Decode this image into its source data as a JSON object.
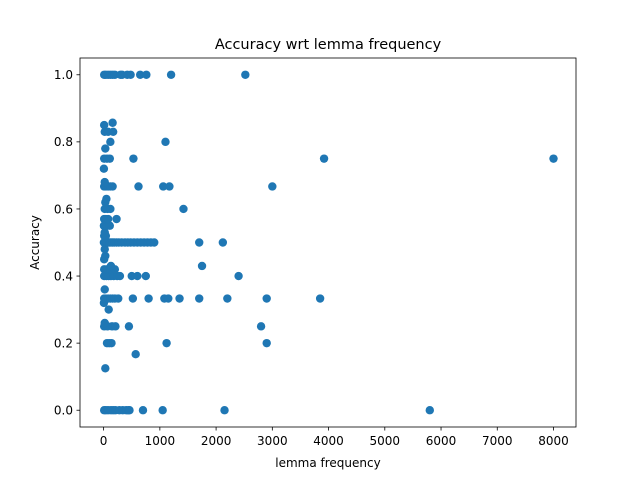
{
  "chart_data": {
    "type": "scatter",
    "title": "Accuracy wrt lemma frequency",
    "xlabel": "lemma frequency",
    "ylabel": "Accuracy",
    "xlim": [
      -420,
      8400
    ],
    "ylim": [
      -0.05,
      1.05
    ],
    "xticks": [
      0,
      1000,
      2000,
      3000,
      4000,
      5000,
      6000,
      7000,
      8000
    ],
    "yticks": [
      0.0,
      0.2,
      0.4,
      0.6,
      0.8,
      1.0
    ],
    "xtick_labels": [
      "0",
      "1000",
      "2000",
      "3000",
      "4000",
      "5000",
      "6000",
      "7000",
      "8000"
    ],
    "ytick_labels": [
      "0.0",
      "0.2",
      "0.4",
      "0.6",
      "0.8",
      "1.0"
    ],
    "grid": false,
    "marker_color": "#1f77b4",
    "points": [
      {
        "x": 10,
        "y": 0.0
      },
      {
        "x": 40,
        "y": 0.0
      },
      {
        "x": 80,
        "y": 0.0
      },
      {
        "x": 130,
        "y": 0.0
      },
      {
        "x": 170,
        "y": 0.0
      },
      {
        "x": 210,
        "y": 0.0
      },
      {
        "x": 280,
        "y": 0.0
      },
      {
        "x": 340,
        "y": 0.0
      },
      {
        "x": 400,
        "y": 0.0
      },
      {
        "x": 440,
        "y": 0.0
      },
      {
        "x": 460,
        "y": 0.0
      },
      {
        "x": 700,
        "y": 0.0
      },
      {
        "x": 1050,
        "y": 0.0
      },
      {
        "x": 2150,
        "y": 0.0
      },
      {
        "x": 5800,
        "y": 0.0
      },
      {
        "x": 30,
        "y": 0.125
      },
      {
        "x": 570,
        "y": 0.167
      },
      {
        "x": 60,
        "y": 0.2
      },
      {
        "x": 100,
        "y": 0.2
      },
      {
        "x": 140,
        "y": 0.2
      },
      {
        "x": 1120,
        "y": 0.2
      },
      {
        "x": 2900,
        "y": 0.2
      },
      {
        "x": 10,
        "y": 0.25
      },
      {
        "x": 70,
        "y": 0.25
      },
      {
        "x": 150,
        "y": 0.25
      },
      {
        "x": 210,
        "y": 0.25
      },
      {
        "x": 450,
        "y": 0.25
      },
      {
        "x": 2800,
        "y": 0.25
      },
      {
        "x": 20,
        "y": 0.26
      },
      {
        "x": 90,
        "y": 0.3
      },
      {
        "x": 5,
        "y": 0.32
      },
      {
        "x": 10,
        "y": 0.333
      },
      {
        "x": 40,
        "y": 0.333
      },
      {
        "x": 80,
        "y": 0.333
      },
      {
        "x": 120,
        "y": 0.333
      },
      {
        "x": 160,
        "y": 0.333
      },
      {
        "x": 200,
        "y": 0.333
      },
      {
        "x": 260,
        "y": 0.333
      },
      {
        "x": 520,
        "y": 0.333
      },
      {
        "x": 800,
        "y": 0.333
      },
      {
        "x": 1080,
        "y": 0.333
      },
      {
        "x": 1150,
        "y": 0.333
      },
      {
        "x": 1350,
        "y": 0.333
      },
      {
        "x": 1700,
        "y": 0.333
      },
      {
        "x": 2200,
        "y": 0.333
      },
      {
        "x": 2900,
        "y": 0.333
      },
      {
        "x": 3850,
        "y": 0.333
      },
      {
        "x": 20,
        "y": 0.36
      },
      {
        "x": 10,
        "y": 0.4
      },
      {
        "x": 50,
        "y": 0.4
      },
      {
        "x": 90,
        "y": 0.4
      },
      {
        "x": 130,
        "y": 0.4
      },
      {
        "x": 180,
        "y": 0.4
      },
      {
        "x": 240,
        "y": 0.4
      },
      {
        "x": 290,
        "y": 0.4
      },
      {
        "x": 500,
        "y": 0.4
      },
      {
        "x": 600,
        "y": 0.4
      },
      {
        "x": 750,
        "y": 0.4
      },
      {
        "x": 2400,
        "y": 0.4
      },
      {
        "x": 10,
        "y": 0.42
      },
      {
        "x": 60,
        "y": 0.42
      },
      {
        "x": 120,
        "y": 0.42
      },
      {
        "x": 200,
        "y": 0.42
      },
      {
        "x": 130,
        "y": 0.43
      },
      {
        "x": 1750,
        "y": 0.43
      },
      {
        "x": 10,
        "y": 0.45
      },
      {
        "x": 30,
        "y": 0.46
      },
      {
        "x": 20,
        "y": 0.48
      },
      {
        "x": 5,
        "y": 0.5
      },
      {
        "x": 20,
        "y": 0.5
      },
      {
        "x": 40,
        "y": 0.5
      },
      {
        "x": 60,
        "y": 0.5
      },
      {
        "x": 80,
        "y": 0.5
      },
      {
        "x": 100,
        "y": 0.5
      },
      {
        "x": 130,
        "y": 0.5
      },
      {
        "x": 160,
        "y": 0.5
      },
      {
        "x": 190,
        "y": 0.5
      },
      {
        "x": 230,
        "y": 0.5
      },
      {
        "x": 270,
        "y": 0.5
      },
      {
        "x": 320,
        "y": 0.5
      },
      {
        "x": 380,
        "y": 0.5
      },
      {
        "x": 430,
        "y": 0.5
      },
      {
        "x": 480,
        "y": 0.5
      },
      {
        "x": 540,
        "y": 0.5
      },
      {
        "x": 600,
        "y": 0.5
      },
      {
        "x": 660,
        "y": 0.5
      },
      {
        "x": 720,
        "y": 0.5
      },
      {
        "x": 780,
        "y": 0.5
      },
      {
        "x": 840,
        "y": 0.5
      },
      {
        "x": 900,
        "y": 0.5
      },
      {
        "x": 1700,
        "y": 0.5
      },
      {
        "x": 2120,
        "y": 0.5
      },
      {
        "x": 10,
        "y": 0.52
      },
      {
        "x": 40,
        "y": 0.52
      },
      {
        "x": 20,
        "y": 0.53
      },
      {
        "x": 5,
        "y": 0.55
      },
      {
        "x": 60,
        "y": 0.55
      },
      {
        "x": 110,
        "y": 0.55
      },
      {
        "x": 10,
        "y": 0.57
      },
      {
        "x": 40,
        "y": 0.57
      },
      {
        "x": 80,
        "y": 0.57
      },
      {
        "x": 230,
        "y": 0.57
      },
      {
        "x": 20,
        "y": 0.6
      },
      {
        "x": 70,
        "y": 0.6
      },
      {
        "x": 120,
        "y": 0.6
      },
      {
        "x": 1420,
        "y": 0.6
      },
      {
        "x": 30,
        "y": 0.62
      },
      {
        "x": 50,
        "y": 0.63
      },
      {
        "x": 10,
        "y": 0.667
      },
      {
        "x": 40,
        "y": 0.667
      },
      {
        "x": 80,
        "y": 0.667
      },
      {
        "x": 120,
        "y": 0.667
      },
      {
        "x": 160,
        "y": 0.667
      },
      {
        "x": 620,
        "y": 0.667
      },
      {
        "x": 1060,
        "y": 0.667
      },
      {
        "x": 1170,
        "y": 0.667
      },
      {
        "x": 3000,
        "y": 0.667
      },
      {
        "x": 20,
        "y": 0.68
      },
      {
        "x": 5,
        "y": 0.72
      },
      {
        "x": 10,
        "y": 0.75
      },
      {
        "x": 60,
        "y": 0.75
      },
      {
        "x": 110,
        "y": 0.75
      },
      {
        "x": 530,
        "y": 0.75
      },
      {
        "x": 3920,
        "y": 0.75
      },
      {
        "x": 8000,
        "y": 0.75
      },
      {
        "x": 30,
        "y": 0.78
      },
      {
        "x": 120,
        "y": 0.8
      },
      {
        "x": 1100,
        "y": 0.8
      },
      {
        "x": 20,
        "y": 0.83
      },
      {
        "x": 80,
        "y": 0.83
      },
      {
        "x": 170,
        "y": 0.83
      },
      {
        "x": 10,
        "y": 0.85
      },
      {
        "x": 160,
        "y": 0.857
      },
      {
        "x": 10,
        "y": 1.0
      },
      {
        "x": 40,
        "y": 1.0
      },
      {
        "x": 80,
        "y": 1.0
      },
      {
        "x": 120,
        "y": 1.0
      },
      {
        "x": 160,
        "y": 1.0
      },
      {
        "x": 200,
        "y": 1.0
      },
      {
        "x": 300,
        "y": 1.0
      },
      {
        "x": 330,
        "y": 1.0
      },
      {
        "x": 420,
        "y": 1.0
      },
      {
        "x": 480,
        "y": 1.0
      },
      {
        "x": 650,
        "y": 1.0
      },
      {
        "x": 760,
        "y": 1.0
      },
      {
        "x": 1200,
        "y": 1.0
      },
      {
        "x": 2520,
        "y": 1.0
      }
    ]
  }
}
